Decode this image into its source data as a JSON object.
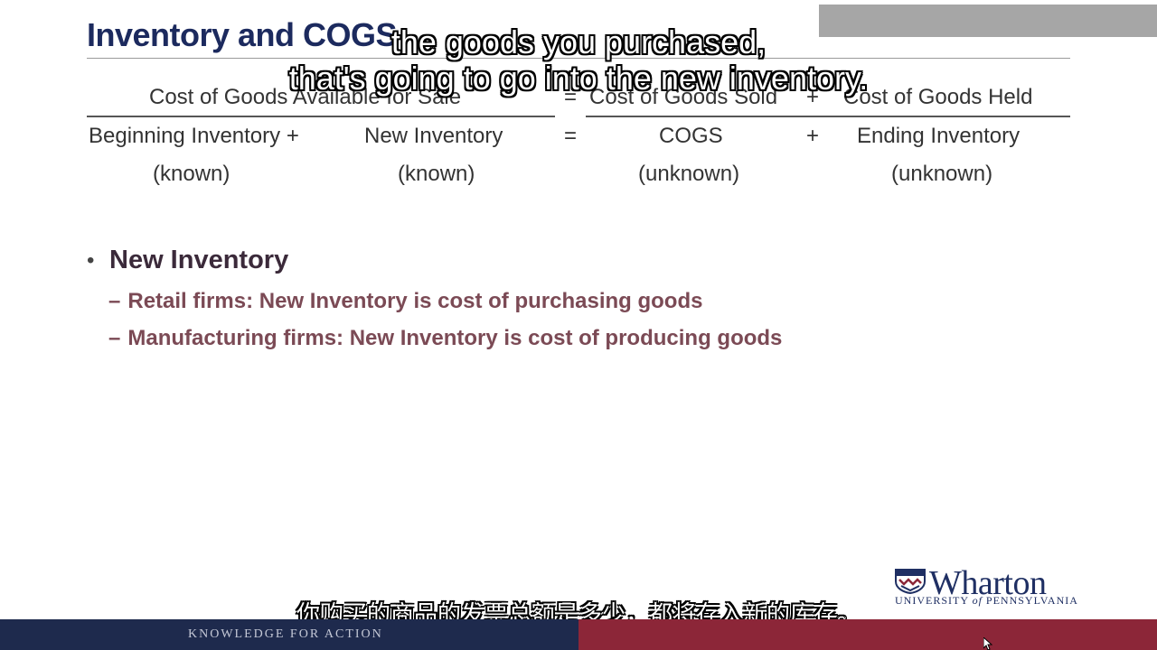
{
  "slide": {
    "title": "Inventory and COGS",
    "equation": {
      "header": {
        "left": "Cost of Goods Available for Sale",
        "eq": "=",
        "mid": "Cost of Goods Sold",
        "plus": "+",
        "right": "Cost of Goods Held"
      },
      "row1": {
        "c1": "Beginning Inventory +",
        "c2": "New Inventory",
        "eq": "=",
        "c3": "COGS",
        "plus": "+",
        "c4": "Ending Inventory"
      },
      "row2": {
        "c1": "(known)",
        "c2": "(known)",
        "c3": "(unknown)",
        "c4": "(unknown)"
      }
    },
    "bullets": {
      "main": "New Inventory",
      "bullet_symbol": "•",
      "dash_symbol": "–",
      "subs": [
        "Retail firms: New Inventory is cost of purchasing goods",
        "Manufacturing firms: New Inventory is cost of producing goods"
      ]
    }
  },
  "subtitles": {
    "en_line1": "the goods you purchased,",
    "en_line2": "that's going to go into the new inventory.",
    "zh": "你购买的商品的发票总额是多少，都将存入新的库存。"
  },
  "branding": {
    "logo_word": "Wharton",
    "logo_sub_a": "UNIVERSITY ",
    "logo_sub_of": "of",
    "logo_sub_b": " PENNSYLVANIA",
    "footer_tagline": "KNOWLEDGE FOR ACTION"
  },
  "colors": {
    "title": "#1c2a5e",
    "sub_bullet": "#7b4a55",
    "footer_navy": "#1e2a4d",
    "footer_red": "#8c2638"
  }
}
